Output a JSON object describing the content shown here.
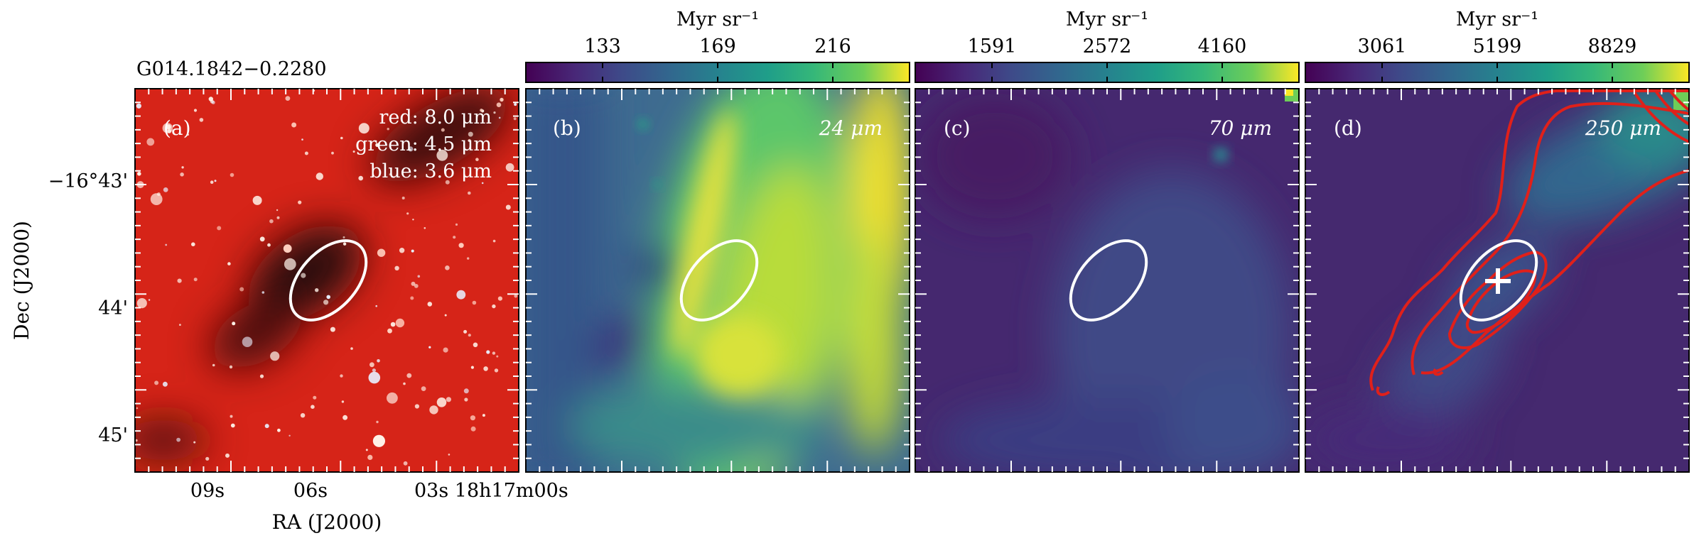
{
  "figure": {
    "source_label": "G014.1842−0.2280",
    "axis_x_label": "RA (J2000)",
    "axis_y_label": "Dec (J2000)",
    "ra_ticks": [
      "09s",
      "06s",
      "03s 18h17m00s"
    ],
    "dec_ticks": [
      "−16°43'",
      "44'",
      "45'"
    ],
    "colors": {
      "rgb_red": "#d62418",
      "rgb_dark": "#2a0808",
      "viridis_low": "#440154",
      "viridis_mid": "#21918c",
      "viridis_high": "#fde725",
      "contour": "#e0201a",
      "ellipse": "#ffffff"
    },
    "panels": [
      {
        "id": "a",
        "label": "(a)",
        "legend": [
          "red: 8.0 μm",
          "green: 4.5 μm",
          "blue: 3.6 μm"
        ],
        "colorbar": null,
        "image": "rgb-composite",
        "contours": false,
        "marker": null
      },
      {
        "id": "b",
        "label": "(b)",
        "band": "24 μm",
        "colorbar": {
          "unit": "Myr sr⁻¹",
          "ticks": [
            "133",
            "169",
            "216"
          ]
        },
        "image": "viridis-bright",
        "contours": false,
        "marker": null
      },
      {
        "id": "c",
        "label": "(c)",
        "band": "70 μm",
        "colorbar": {
          "unit": "Myr sr⁻¹",
          "ticks": [
            "1591",
            "2572",
            "4160"
          ]
        },
        "image": "viridis-dark",
        "contours": false,
        "marker": null
      },
      {
        "id": "d",
        "label": "(d)",
        "band": "250 μm",
        "colorbar": {
          "unit": "Myr sr⁻¹",
          "ticks": [
            "3061",
            "5199",
            "8829"
          ]
        },
        "image": "viridis-dark",
        "contours": true,
        "marker": "plus-icon"
      }
    ]
  }
}
